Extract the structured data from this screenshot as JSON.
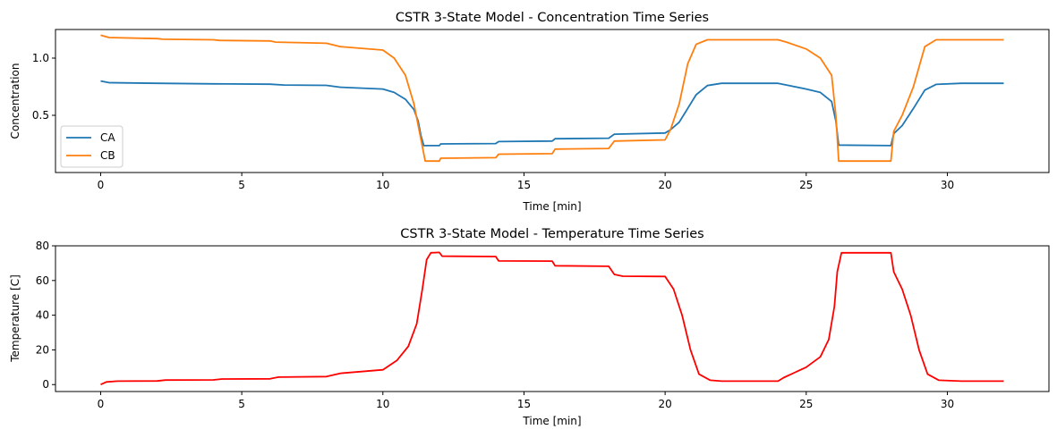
{
  "chart_data": [
    {
      "type": "line",
      "title": "CSTR 3-State Model - Concentration Time Series",
      "xlabel": "Time [min]",
      "ylabel": "Concentration",
      "xlim": [
        -1.6,
        33.6
      ],
      "ylim": [
        0.0,
        1.25
      ],
      "xticks": [
        0,
        5,
        10,
        15,
        20,
        25,
        30
      ],
      "yticks": [
        0.5,
        1.0
      ],
      "ytick_labels": [
        "0.5",
        "1.0"
      ],
      "grid": false,
      "legend": "lower-left",
      "series": [
        {
          "name": "CA",
          "color": "#1f77b4",
          "points": [
            [
              0,
              0.8
            ],
            [
              0.3,
              0.785
            ],
            [
              2,
              0.78
            ],
            [
              4,
              0.775
            ],
            [
              6,
              0.772
            ],
            [
              6.5,
              0.765
            ],
            [
              8,
              0.762
            ],
            [
              8.5,
              0.745
            ],
            [
              10,
              0.73
            ],
            [
              10.4,
              0.7
            ],
            [
              10.8,
              0.64
            ],
            [
              11.1,
              0.55
            ],
            [
              11.25,
              0.45
            ],
            [
              11.35,
              0.32
            ],
            [
              11.45,
              0.235
            ],
            [
              12,
              0.235
            ],
            [
              12.05,
              0.25
            ],
            [
              14,
              0.253
            ],
            [
              14.1,
              0.27
            ],
            [
              16,
              0.275
            ],
            [
              16.1,
              0.295
            ],
            [
              18,
              0.3
            ],
            [
              18.2,
              0.335
            ],
            [
              20,
              0.345
            ],
            [
              20.2,
              0.375
            ],
            [
              20.5,
              0.44
            ],
            [
              20.8,
              0.56
            ],
            [
              21.1,
              0.68
            ],
            [
              21.5,
              0.76
            ],
            [
              22,
              0.78
            ],
            [
              24,
              0.78
            ],
            [
              24.3,
              0.765
            ],
            [
              25,
              0.73
            ],
            [
              25.5,
              0.7
            ],
            [
              25.9,
              0.62
            ],
            [
              26.05,
              0.45
            ],
            [
              26.15,
              0.24
            ],
            [
              28,
              0.235
            ],
            [
              28.1,
              0.34
            ],
            [
              28.4,
              0.41
            ],
            [
              28.8,
              0.56
            ],
            [
              29.2,
              0.72
            ],
            [
              29.6,
              0.77
            ],
            [
              30.5,
              0.78
            ],
            [
              32,
              0.78
            ]
          ]
        },
        {
          "name": "CB",
          "color": "#ff7f0e",
          "points": [
            [
              0,
              1.2
            ],
            [
              0.3,
              1.18
            ],
            [
              2,
              1.17
            ],
            [
              2.2,
              1.165
            ],
            [
              4,
              1.16
            ],
            [
              4.2,
              1.155
            ],
            [
              6,
              1.15
            ],
            [
              6.2,
              1.14
            ],
            [
              8,
              1.13
            ],
            [
              8.5,
              1.1
            ],
            [
              10,
              1.07
            ],
            [
              10.4,
              1.0
            ],
            [
              10.8,
              0.85
            ],
            [
              11.1,
              0.6
            ],
            [
              11.3,
              0.35
            ],
            [
              11.5,
              0.1
            ],
            [
              12,
              0.1
            ],
            [
              12.05,
              0.125
            ],
            [
              14,
              0.13
            ],
            [
              14.1,
              0.16
            ],
            [
              16,
              0.165
            ],
            [
              16.1,
              0.205
            ],
            [
              18,
              0.21
            ],
            [
              18.2,
              0.275
            ],
            [
              20,
              0.285
            ],
            [
              20.2,
              0.38
            ],
            [
              20.5,
              0.6
            ],
            [
              20.8,
              0.95
            ],
            [
              21.1,
              1.12
            ],
            [
              21.5,
              1.16
            ],
            [
              24,
              1.16
            ],
            [
              24.3,
              1.14
            ],
            [
              25,
              1.08
            ],
            [
              25.5,
              1.0
            ],
            [
              25.9,
              0.85
            ],
            [
              26.05,
              0.5
            ],
            [
              26.15,
              0.1
            ],
            [
              28,
              0.1
            ],
            [
              28.1,
              0.36
            ],
            [
              28.4,
              0.5
            ],
            [
              28.8,
              0.75
            ],
            [
              29.2,
              1.1
            ],
            [
              29.6,
              1.16
            ],
            [
              32,
              1.16
            ]
          ]
        }
      ]
    },
    {
      "type": "line",
      "title": "CSTR 3-State Model - Temperature Time Series",
      "xlabel": "Time [min]",
      "ylabel": "Temperature [C]",
      "xlim": [
        -1.6,
        33.6
      ],
      "ylim": [
        -4.0,
        80.0
      ],
      "xticks": [
        0,
        5,
        10,
        15,
        20,
        25,
        30
      ],
      "yticks": [
        0,
        20,
        40,
        60,
        80
      ],
      "ytick_labels": [
        "0",
        "20",
        "40",
        "60",
        "80"
      ],
      "grid": false,
      "series": [
        {
          "name": "",
          "color": "#ff0000",
          "points": [
            [
              0,
              0
            ],
            [
              0.2,
              1.5
            ],
            [
              0.6,
              2
            ],
            [
              2,
              2.1
            ],
            [
              2.3,
              2.6
            ],
            [
              4,
              2.7
            ],
            [
              4.3,
              3.2
            ],
            [
              6,
              3.3
            ],
            [
              6.3,
              4.3
            ],
            [
              8,
              4.6
            ],
            [
              8.5,
              6.5
            ],
            [
              10,
              8.5
            ],
            [
              10.5,
              14
            ],
            [
              10.9,
              22
            ],
            [
              11.2,
              35
            ],
            [
              11.4,
              55
            ],
            [
              11.55,
              72
            ],
            [
              11.7,
              76
            ],
            [
              12,
              76.2
            ],
            [
              12.1,
              74
            ],
            [
              14,
              73.8
            ],
            [
              14.1,
              71.3
            ],
            [
              16,
              71.2
            ],
            [
              16.1,
              68.5
            ],
            [
              18,
              68.2
            ],
            [
              18.2,
              63.5
            ],
            [
              18.5,
              62.5
            ],
            [
              20,
              62.3
            ],
            [
              20.3,
              55
            ],
            [
              20.6,
              40
            ],
            [
              20.9,
              20
            ],
            [
              21.2,
              6
            ],
            [
              21.6,
              2.5
            ],
            [
              22,
              2
            ],
            [
              24,
              2
            ],
            [
              24.2,
              4
            ],
            [
              25,
              10
            ],
            [
              25.5,
              16
            ],
            [
              25.8,
              26
            ],
            [
              26,
              45
            ],
            [
              26.1,
              65
            ],
            [
              26.25,
              76
            ],
            [
              28,
              76
            ],
            [
              28.1,
              65
            ],
            [
              28.4,
              55
            ],
            [
              28.7,
              40
            ],
            [
              29,
              20
            ],
            [
              29.3,
              6
            ],
            [
              29.7,
              2.5
            ],
            [
              30.5,
              2
            ],
            [
              32,
              2
            ]
          ]
        }
      ]
    }
  ]
}
